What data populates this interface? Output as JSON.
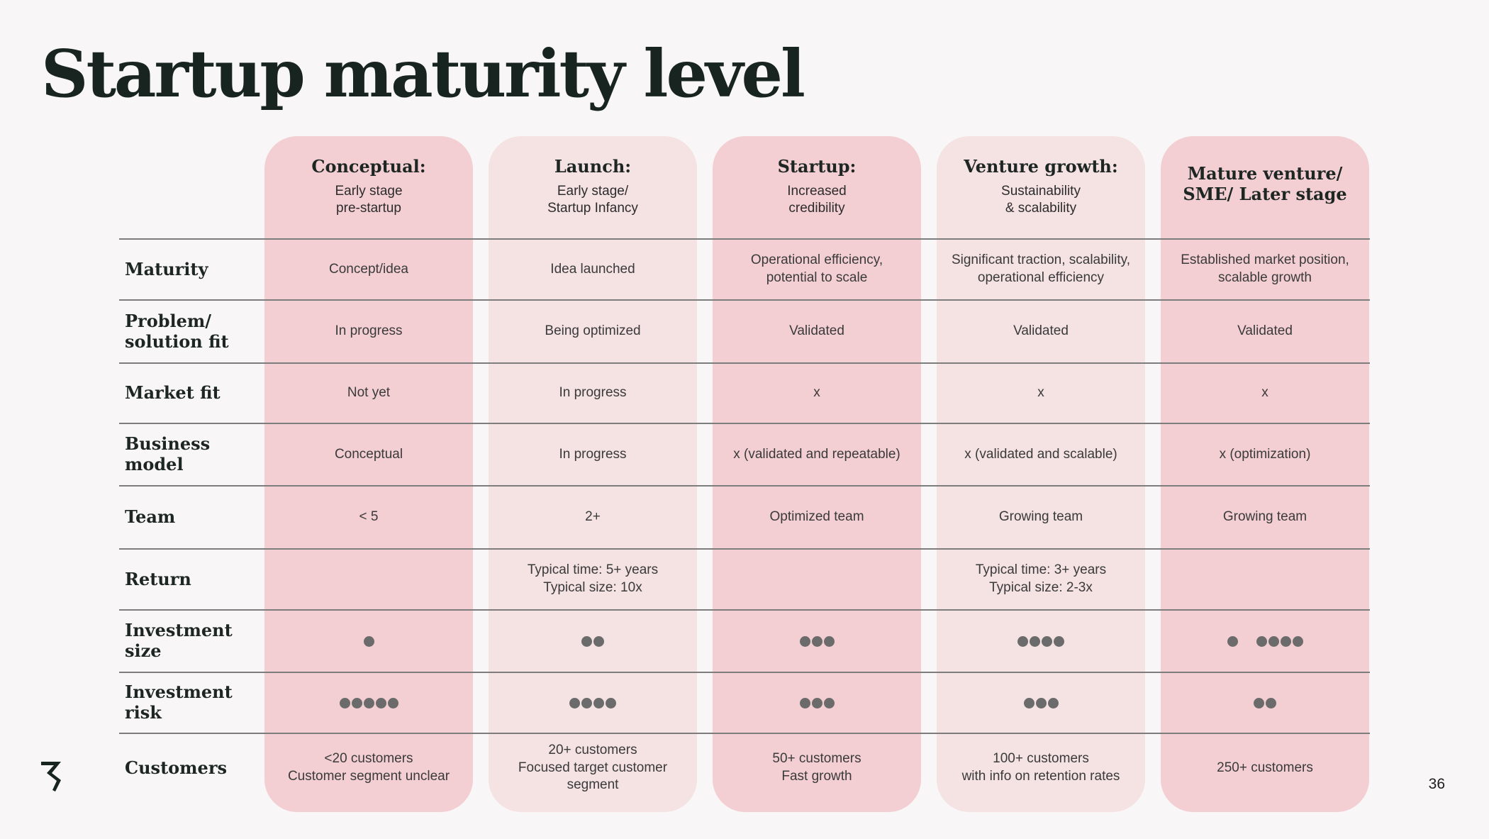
{
  "title": "Startup maturity level",
  "page_number": "36",
  "colors": {
    "column_dark": "#f3cfd3",
    "column_light": "#f5e2e3",
    "dot": "#6b6b6b",
    "text": "#1d2623"
  },
  "columns": [
    {
      "title": "Conceptual:",
      "subtitle": "Early stage\npre-startup"
    },
    {
      "title": "Launch:",
      "subtitle": "Early stage/\nStartup Infancy"
    },
    {
      "title": "Startup:",
      "subtitle": "Increased\ncredibility"
    },
    {
      "title": "Venture growth:",
      "subtitle": "Sustainability\n& scalability"
    },
    {
      "title": "Mature venture/\nSME/ Later stage",
      "subtitle": ""
    }
  ],
  "rows": [
    {
      "label": "Maturity",
      "cells": [
        "Concept/idea",
        "Idea launched",
        "Operational efficiency,\npotential to scale",
        "Significant traction, scalability,\noperational efficiency",
        "Established market position,\nscalable growth"
      ]
    },
    {
      "label": "Problem/\nsolution fit",
      "cells": [
        "In progress",
        "Being optimized",
        "Validated",
        "Validated",
        "Validated"
      ]
    },
    {
      "label": "Market fit",
      "cells": [
        "Not yet",
        "In progress",
        "x",
        "x",
        "x"
      ]
    },
    {
      "label": "Business model",
      "cells": [
        "Conceptual",
        "In progress",
        "x (validated and repeatable)",
        "x (validated and scalable)",
        "x (optimization)"
      ]
    },
    {
      "label": "Team",
      "cells": [
        "< 5",
        "2+",
        "Optimized team",
        "Growing team",
        "Growing team"
      ]
    },
    {
      "label": "Return",
      "cells": [
        "",
        "Typical time: 5+ years\nTypical size: 10x",
        "",
        "Typical time: 3+ years\nTypical size: 2-3x",
        ""
      ]
    },
    {
      "label": "Investment size",
      "dots": [
        [
          1
        ],
        [
          2
        ],
        [
          3
        ],
        [
          4
        ],
        [
          1,
          4
        ]
      ]
    },
    {
      "label": "Investment risk",
      "dots": [
        [
          5
        ],
        [
          4
        ],
        [
          3
        ],
        [
          3
        ],
        [
          2
        ]
      ]
    },
    {
      "label": "Customers",
      "cells": [
        "<20 customers\nCustomer segment unclear",
        "20+ customers\nFocused target customer\nsegment",
        "50+ customers\nFast growth",
        "100+ customers\nwith info on retention rates",
        "250+ customers"
      ]
    }
  ]
}
